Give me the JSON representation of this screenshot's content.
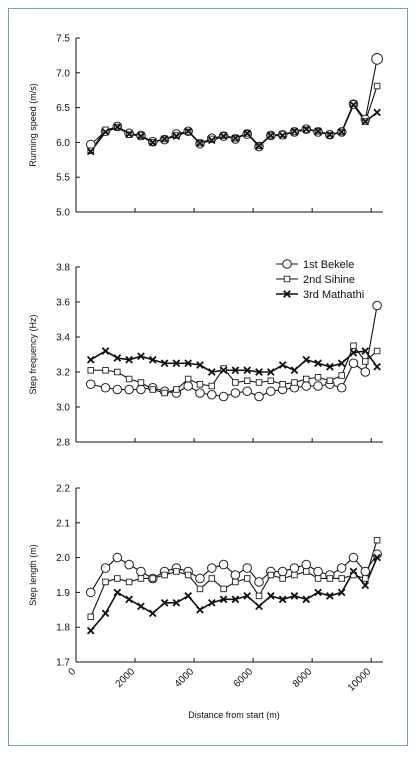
{
  "figure": {
    "xlabel": "Distance from start (m)",
    "x_ticks": [
      0,
      2000,
      4000,
      6000,
      8000,
      10000
    ],
    "legend": [
      "1st Bekele",
      "2nd Sihine",
      "3rd Mathathi"
    ]
  },
  "chart_data": [
    {
      "type": "line",
      "ylabel": "Running speed (m/s)",
      "ylim": [
        5.0,
        7.5
      ],
      "y_ticks": [
        "5.0",
        "5.5",
        "6.0",
        "6.5",
        "7.0",
        "7.5"
      ],
      "xlim": [
        0,
        10400
      ],
      "x": [
        500,
        1000,
        1400,
        1800,
        2200,
        2600,
        3000,
        3400,
        3800,
        4200,
        4600,
        5000,
        5400,
        5800,
        6200,
        6600,
        7000,
        7400,
        7800,
        8200,
        8600,
        9000,
        9400,
        9800,
        10200
      ],
      "series": [
        {
          "name": "1st Bekele",
          "marker": "circle",
          "values": [
            5.97,
            6.16,
            6.23,
            6.13,
            6.1,
            6.01,
            6.04,
            6.12,
            6.16,
            5.98,
            6.06,
            6.09,
            6.05,
            6.12,
            5.94,
            6.1,
            6.11,
            6.15,
            6.19,
            6.15,
            6.11,
            6.15,
            6.55,
            6.33,
            7.2
          ]
        },
        {
          "name": "2nd Sihine",
          "marker": "square",
          "values": [
            5.88,
            6.18,
            6.22,
            6.11,
            6.1,
            6.0,
            6.05,
            6.1,
            6.15,
            5.99,
            6.05,
            6.1,
            6.06,
            6.13,
            5.95,
            6.1,
            6.12,
            6.15,
            6.18,
            6.16,
            6.1,
            6.15,
            6.56,
            6.3,
            6.81
          ]
        },
        {
          "name": "3rd Mathathi",
          "marker": "x",
          "values": [
            5.87,
            6.15,
            6.22,
            6.12,
            6.09,
            6.0,
            6.05,
            6.09,
            6.16,
            5.99,
            6.03,
            6.09,
            6.06,
            6.13,
            5.95,
            6.1,
            6.1,
            6.16,
            6.19,
            6.16,
            6.11,
            6.15,
            6.54,
            6.3,
            6.43
          ]
        }
      ]
    },
    {
      "type": "line",
      "ylabel": "Step frequency (Hz)",
      "ylim": [
        2.8,
        3.8
      ],
      "y_ticks": [
        "2.8",
        "3.0",
        "3.2",
        "3.4",
        "3.6",
        "3.8"
      ],
      "xlim": [
        0,
        10400
      ],
      "x": [
        500,
        1000,
        1400,
        1800,
        2200,
        2600,
        3000,
        3400,
        3800,
        4200,
        4600,
        5000,
        5400,
        5800,
        6200,
        6600,
        7000,
        7400,
        7800,
        8200,
        8600,
        9000,
        9400,
        9800,
        10200
      ],
      "series": [
        {
          "name": "1st Bekele",
          "marker": "circle",
          "values": [
            3.13,
            3.11,
            3.1,
            3.1,
            3.1,
            3.11,
            3.09,
            3.08,
            3.12,
            3.08,
            3.07,
            3.06,
            3.08,
            3.09,
            3.06,
            3.09,
            3.1,
            3.11,
            3.12,
            3.12,
            3.13,
            3.11,
            3.25,
            3.2,
            3.58
          ]
        },
        {
          "name": "2nd Sihine",
          "marker": "square",
          "values": [
            3.21,
            3.21,
            3.2,
            3.16,
            3.14,
            3.1,
            3.08,
            3.1,
            3.16,
            3.13,
            3.12,
            3.22,
            3.14,
            3.15,
            3.14,
            3.15,
            3.13,
            3.14,
            3.16,
            3.17,
            3.15,
            3.18,
            3.35,
            3.26,
            3.32
          ]
        },
        {
          "name": "3rd Mathathi",
          "marker": "x",
          "values": [
            3.27,
            3.32,
            3.28,
            3.27,
            3.29,
            3.27,
            3.25,
            3.25,
            3.25,
            3.24,
            3.2,
            3.21,
            3.21,
            3.21,
            3.2,
            3.2,
            3.24,
            3.21,
            3.27,
            3.25,
            3.23,
            3.25,
            3.31,
            3.32,
            3.23
          ]
        }
      ]
    },
    {
      "type": "line",
      "ylabel": "Step length (m)",
      "ylim": [
        1.7,
        2.2
      ],
      "y_ticks": [
        "1.7",
        "1.8",
        "1.9",
        "2.0",
        "2.1",
        "2.2"
      ],
      "xlim": [
        0,
        10400
      ],
      "x": [
        500,
        1000,
        1400,
        1800,
        2200,
        2600,
        3000,
        3400,
        3800,
        4200,
        4600,
        5000,
        5400,
        5800,
        6200,
        6600,
        7000,
        7400,
        7800,
        8200,
        8600,
        9000,
        9400,
        9800,
        10200
      ],
      "series": [
        {
          "name": "1st Bekele",
          "marker": "circle",
          "values": [
            1.9,
            1.97,
            2.0,
            1.98,
            1.96,
            1.94,
            1.96,
            1.97,
            1.96,
            1.94,
            1.97,
            1.98,
            1.95,
            1.97,
            1.93,
            1.96,
            1.96,
            1.97,
            1.98,
            1.96,
            1.95,
            1.97,
            2.0,
            1.96,
            2.01
          ]
        },
        {
          "name": "2nd Sihine",
          "marker": "square",
          "values": [
            1.83,
            1.93,
            1.94,
            1.93,
            1.94,
            1.94,
            1.95,
            1.96,
            1.95,
            1.91,
            1.94,
            1.91,
            1.93,
            1.94,
            1.89,
            1.95,
            1.94,
            1.95,
            1.96,
            1.94,
            1.94,
            1.94,
            1.95,
            1.94,
            2.05
          ]
        },
        {
          "name": "3rd Mathathi",
          "marker": "x",
          "values": [
            1.79,
            1.84,
            1.9,
            1.88,
            1.86,
            1.84,
            1.87,
            1.87,
            1.89,
            1.85,
            1.87,
            1.88,
            1.88,
            1.89,
            1.86,
            1.89,
            1.88,
            1.89,
            1.88,
            1.9,
            1.89,
            1.9,
            1.96,
            1.92,
            2.0
          ]
        }
      ]
    }
  ]
}
